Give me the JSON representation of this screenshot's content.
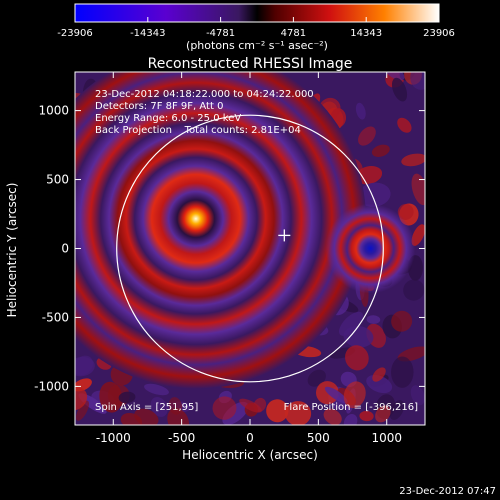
{
  "colorbar": {
    "ticks": [
      "-23906",
      "-14343",
      "-4781",
      "4781",
      "14343",
      "23906"
    ],
    "unit_label": "(photons cm⁻² s⁻¹ asec⁻²)",
    "min": -23906,
    "max": 23906
  },
  "plot": {
    "title": "Reconstructed RHESSI Image",
    "info_lines": [
      "23-Dec-2012 04:18:22.000 to 04:24:22.000",
      "Detectors: 7F 8F 9F, Att 0",
      "Energy Range: 6.0 - 25.0 keV",
      "Back Projection    Total counts: 2.81E+04"
    ],
    "spin_axis": "Spin Axis = [251,95]",
    "flare_position": "Flare Position = [-396,216]",
    "xlabel": "Heliocentric X (arcsec)",
    "ylabel": "Heliocentric Y (arcsec)",
    "xticks": [
      "-1000",
      "-500",
      "0",
      "500",
      "1000"
    ],
    "yticks": [
      "1000",
      "500",
      "0",
      "-500",
      "-1000"
    ],
    "xlim": [
      -1280,
      1280
    ],
    "ylim": [
      -1280,
      1280
    ],
    "solar_disk_center": [
      0,
      0
    ],
    "solar_disk_radius": 975,
    "flare_source": [
      -396,
      216
    ],
    "spin_axis_marker": [
      251,
      95
    ],
    "negative_source": [
      880,
      0
    ]
  },
  "footer": {
    "timestamp": "23-Dec-2012 07:47"
  }
}
